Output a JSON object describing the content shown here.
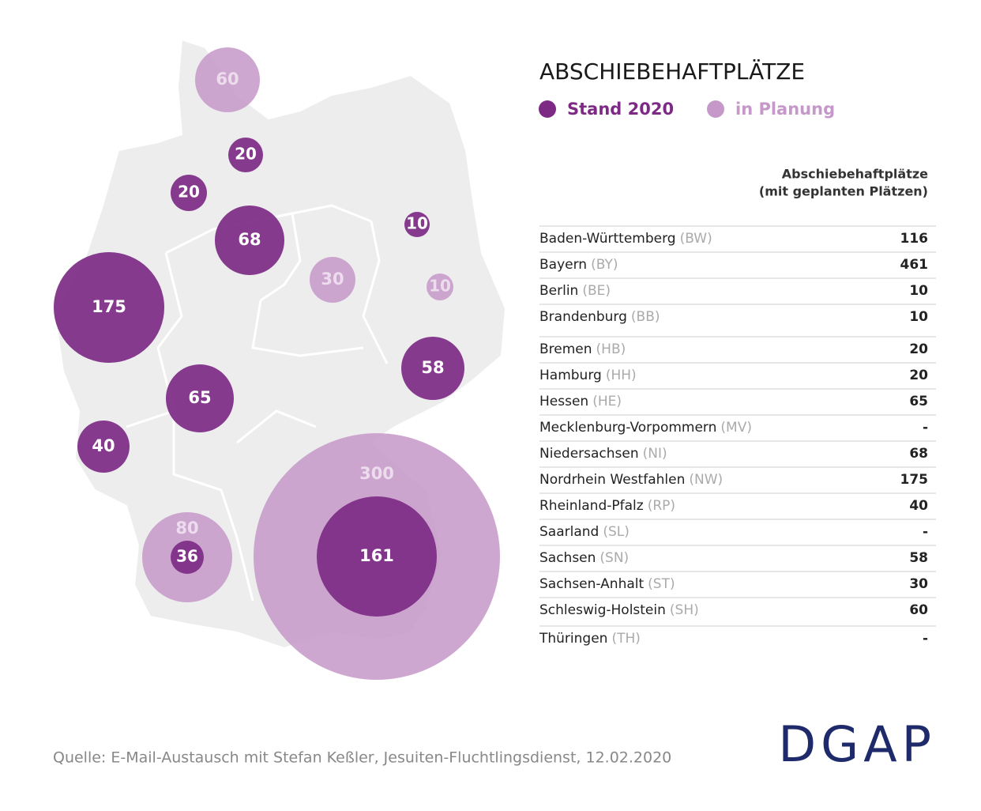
{
  "title": "ABSCHIEBEHAFTPLÄTZE",
  "legend": [
    {
      "name": "Stand 2020",
      "color": "#7d2a85"
    },
    {
      "name": "in Planung",
      "color": "#c598c9"
    }
  ],
  "map": {
    "series": [
      {
        "name": "Stand 2020",
        "color": "#7d2a85",
        "values": [
          20,
          20,
          68,
          10,
          175,
          58,
          65,
          40,
          161,
          36
        ]
      },
      {
        "name": "in Planung",
        "color": "#c598c9",
        "values": [
          60,
          30,
          10,
          300,
          80
        ]
      }
    ]
  },
  "table": {
    "header": [
      "Abschiebehaftplätze",
      "(mit geplanten Plätzen)"
    ],
    "rows": [
      [
        "Baden-Württemberg",
        "(BW)",
        116
      ],
      [
        "Bayern",
        "(BY)",
        461
      ],
      [
        "Berlin",
        "(BE)",
        10
      ],
      [
        "Brandenburg",
        "(BB)",
        10
      ],
      [
        "Bremen",
        "(HB)",
        20
      ],
      [
        "Hamburg",
        "(HH)",
        20
      ],
      [
        "Hessen",
        "(HE)",
        65
      ],
      [
        "Mecklenburg-Vorpommern",
        "(MV)",
        "-"
      ],
      [
        "Niedersachsen",
        "(NI)",
        68
      ],
      [
        "Nordrhein Westfahlen",
        "(NW)",
        175
      ],
      [
        "Rheinland-Pfalz",
        "(RP)",
        40
      ],
      [
        "Saarland",
        "(SL)",
        "-"
      ],
      [
        "Sachsen",
        "(SN)",
        58
      ],
      [
        "Sachsen-Anhalt",
        "(ST)",
        30
      ],
      [
        "Schleswig-Holstein",
        "(SH)",
        60
      ],
      [
        "Thüringen",
        "(TH)",
        "-"
      ]
    ]
  },
  "source": "Quelle: E-Mail-Austausch mit Stefan Keßler, Jesuiten-Fluchtlingsdienst, 12.02.2020",
  "logo": "DGAP"
}
